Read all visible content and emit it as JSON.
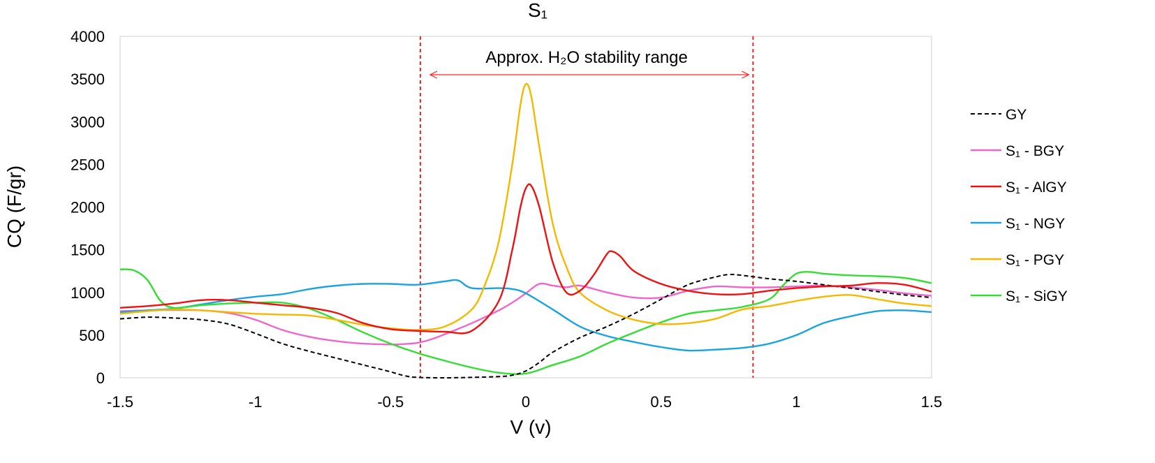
{
  "chart_data": {
    "type": "line",
    "title": "S₁",
    "xlabel": "V (v)",
    "ylabel": "CQ (F/gr)",
    "xlim": [
      -1.5,
      1.5
    ],
    "ylim": [
      0,
      4000
    ],
    "xticks": [
      -1.5,
      -1,
      -0.5,
      0,
      0.5,
      1,
      1.5
    ],
    "xtick_labels": [
      "-1.5",
      "-1",
      "-0.5",
      "0",
      "0.5",
      "1",
      "1.5"
    ],
    "yticks": [
      0,
      500,
      1000,
      1500,
      2000,
      2500,
      3000,
      3500,
      4000
    ],
    "ytick_labels": [
      "0",
      "500",
      "1000",
      "1500",
      "2000",
      "2500",
      "3000",
      "3500",
      "4000"
    ],
    "grid": false,
    "legend_position": "right",
    "annotation": {
      "text": "Approx. H₂O stability range",
      "x_start": -0.39,
      "x_end": 0.84,
      "color": "#ff2020"
    },
    "series": [
      {
        "name": "GY",
        "color": "#000000",
        "dashed": true,
        "x": [
          -1.5,
          -1.4,
          -1.3,
          -1.2,
          -1.1,
          -1.0,
          -0.9,
          -0.8,
          -0.7,
          -0.6,
          -0.5,
          -0.45,
          -0.4,
          -0.3,
          -0.2,
          -0.1,
          -0.05,
          0,
          0.05,
          0.1,
          0.2,
          0.3,
          0.4,
          0.5,
          0.6,
          0.7,
          0.75,
          0.8,
          0.9,
          1.0,
          1.1,
          1.2,
          1.3,
          1.4,
          1.5
        ],
        "y": [
          690,
          710,
          700,
          680,
          630,
          520,
          400,
          310,
          230,
          150,
          70,
          25,
          5,
          0,
          5,
          15,
          30,
          80,
          180,
          300,
          470,
          600,
          750,
          920,
          1090,
          1180,
          1210,
          1200,
          1160,
          1130,
          1090,
          1050,
          1010,
          970,
          940
        ]
      },
      {
        "name": "S₁  - BGY",
        "color": "#ee66cc",
        "dashed": false,
        "x": [
          -1.5,
          -1.4,
          -1.3,
          -1.2,
          -1.1,
          -1.0,
          -0.9,
          -0.8,
          -0.7,
          -0.6,
          -0.5,
          -0.45,
          -0.4,
          -0.35,
          -0.3,
          -0.2,
          -0.1,
          -0.05,
          0,
          0.05,
          0.1,
          0.15,
          0.2,
          0.3,
          0.4,
          0.5,
          0.6,
          0.7,
          0.8,
          0.9,
          1.0,
          1.1,
          1.2,
          1.3,
          1.4,
          1.5
        ],
        "y": [
          780,
          790,
          795,
          790,
          760,
          680,
          560,
          480,
          430,
          400,
          390,
          395,
          410,
          450,
          510,
          640,
          790,
          880,
          990,
          1100,
          1080,
          1060,
          1080,
          1000,
          940,
          940,
          1020,
          1070,
          1060,
          1060,
          1070,
          1080,
          1060,
          1030,
          990,
          960
        ]
      },
      {
        "name": "S₁  - AlGY",
        "color": "#ee1111",
        "dashed": false,
        "x": [
          -1.5,
          -1.4,
          -1.3,
          -1.2,
          -1.1,
          -1.0,
          -0.9,
          -0.8,
          -0.7,
          -0.6,
          -0.5,
          -0.4,
          -0.3,
          -0.2,
          -0.1,
          -0.05,
          -0.02,
          0,
          0.02,
          0.05,
          0.1,
          0.15,
          0.2,
          0.25,
          0.3,
          0.32,
          0.35,
          0.4,
          0.5,
          0.6,
          0.7,
          0.8,
          0.9,
          1.0,
          1.1,
          1.2,
          1.3,
          1.4,
          1.5
        ],
        "y": [
          820,
          840,
          870,
          910,
          910,
          880,
          850,
          820,
          760,
          640,
          570,
          550,
          540,
          550,
          900,
          1500,
          2000,
          2220,
          2250,
          2000,
          1350,
          1000,
          1020,
          1200,
          1450,
          1480,
          1420,
          1250,
          1100,
          1020,
          980,
          980,
          1020,
          1050,
          1070,
          1080,
          1110,
          1090,
          1010
        ]
      },
      {
        "name": "S₁  - NGY",
        "color": "#1aa3e0",
        "dashed": false,
        "x": [
          -1.5,
          -1.4,
          -1.3,
          -1.2,
          -1.1,
          -1.0,
          -0.9,
          -0.8,
          -0.7,
          -0.6,
          -0.5,
          -0.4,
          -0.3,
          -0.25,
          -0.2,
          -0.1,
          -0.05,
          0,
          0.1,
          0.2,
          0.3,
          0.4,
          0.5,
          0.6,
          0.7,
          0.8,
          0.9,
          1.0,
          1.1,
          1.2,
          1.3,
          1.4,
          1.5
        ],
        "y": [
          770,
          790,
          810,
          860,
          910,
          950,
          980,
          1040,
          1080,
          1100,
          1100,
          1090,
          1130,
          1140,
          1050,
          1050,
          1040,
          990,
          800,
          600,
          490,
          420,
          360,
          320,
          330,
          350,
          400,
          500,
          640,
          720,
          780,
          790,
          770
        ]
      },
      {
        "name": "S₁  - PGY",
        "color": "#f5b800",
        "dashed": false,
        "x": [
          -1.5,
          -1.4,
          -1.3,
          -1.2,
          -1.1,
          -1.0,
          -0.9,
          -0.8,
          -0.7,
          -0.6,
          -0.5,
          -0.4,
          -0.3,
          -0.2,
          -0.15,
          -0.1,
          -0.05,
          -0.02,
          0,
          0.02,
          0.05,
          0.1,
          0.15,
          0.2,
          0.3,
          0.4,
          0.5,
          0.6,
          0.7,
          0.8,
          0.9,
          1.0,
          1.1,
          1.2,
          1.3,
          1.4,
          1.5
        ],
        "y": [
          750,
          780,
          800,
          790,
          770,
          750,
          740,
          730,
          680,
          620,
          580,
          560,
          600,
          800,
          1100,
          1600,
          2500,
          3200,
          3440,
          3300,
          2700,
          1800,
          1300,
          1000,
          790,
          680,
          630,
          640,
          690,
          800,
          840,
          900,
          950,
          970,
          920,
          870,
          840
        ]
      },
      {
        "name": "S₁  - SiGY",
        "color": "#33dd33",
        "dashed": false,
        "x": [
          -1.5,
          -1.45,
          -1.4,
          -1.35,
          -1.3,
          -1.2,
          -1.1,
          -1.0,
          -0.9,
          -0.8,
          -0.7,
          -0.6,
          -0.5,
          -0.4,
          -0.3,
          -0.2,
          -0.1,
          0,
          0.1,
          0.2,
          0.3,
          0.4,
          0.5,
          0.6,
          0.7,
          0.8,
          0.9,
          0.95,
          1.0,
          1.05,
          1.1,
          1.2,
          1.3,
          1.4,
          1.5
        ],
        "y": [
          1270,
          1260,
          1150,
          900,
          820,
          850,
          870,
          880,
          880,
          810,
          680,
          530,
          400,
          290,
          200,
          120,
          60,
          50,
          150,
          250,
          400,
          530,
          650,
          750,
          790,
          830,
          920,
          1080,
          1220,
          1240,
          1220,
          1200,
          1190,
          1170,
          1110
        ]
      }
    ]
  }
}
